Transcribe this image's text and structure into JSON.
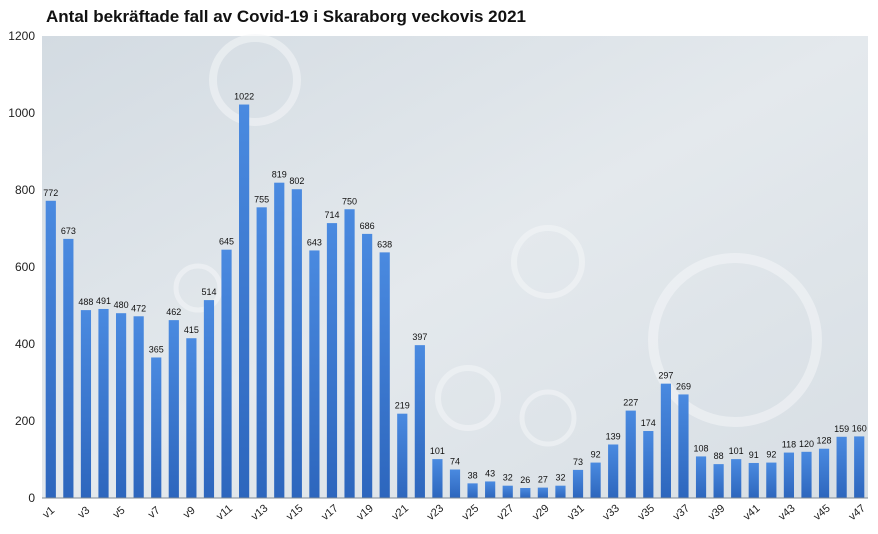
{
  "chart_data": {
    "type": "bar",
    "title": "Antal bekräftade fall av Covid-19 i Skaraborg veckovis 2021",
    "xlabel": "",
    "ylabel": "",
    "ylim": [
      0,
      1200
    ],
    "y_ticks": [
      0,
      200,
      400,
      600,
      800,
      1000,
      1200
    ],
    "grid": false,
    "legend": "none",
    "bar_color": "#3c7dd6",
    "categories": [
      "v1",
      "v2",
      "v3",
      "v4",
      "v5",
      "v6",
      "v7",
      "v8",
      "v9",
      "v10",
      "v11",
      "v12",
      "v13",
      "v14",
      "v15",
      "v16",
      "v17",
      "v18",
      "v19",
      "v20",
      "v21",
      "v22",
      "v23",
      "v24",
      "v25",
      "v26",
      "v27",
      "v28",
      "v29",
      "v30",
      "v31",
      "v32",
      "v33",
      "v34",
      "v35",
      "v36",
      "v37",
      "v38",
      "v39",
      "v40",
      "v41",
      "v42",
      "v43",
      "v44",
      "v45",
      "v46",
      "v47"
    ],
    "x_tick_labels": [
      "v1",
      "",
      "v3",
      "",
      "v5",
      "",
      "v7",
      "",
      "v9",
      "",
      "v11",
      "",
      "v13",
      "",
      "v15",
      "",
      "v17",
      "",
      "v19",
      "",
      "v21",
      "",
      "v23",
      "",
      "v25",
      "",
      "v27",
      "",
      "v29",
      "",
      "v31",
      "",
      "v33",
      "",
      "v35",
      "",
      "v37",
      "",
      "v39",
      "",
      "v41",
      "",
      "v43",
      "",
      "v45",
      "",
      "v47"
    ],
    "values": [
      772,
      673,
      488,
      491,
      480,
      472,
      365,
      462,
      415,
      514,
      645,
      1022,
      755,
      819,
      802,
      643,
      714,
      750,
      686,
      638,
      219,
      397,
      101,
      74,
      38,
      43,
      32,
      26,
      27,
      32,
      73,
      92,
      139,
      227,
      174,
      297,
      269,
      108,
      88,
      101,
      91,
      92,
      118,
      120,
      128,
      159,
      160
    ]
  }
}
